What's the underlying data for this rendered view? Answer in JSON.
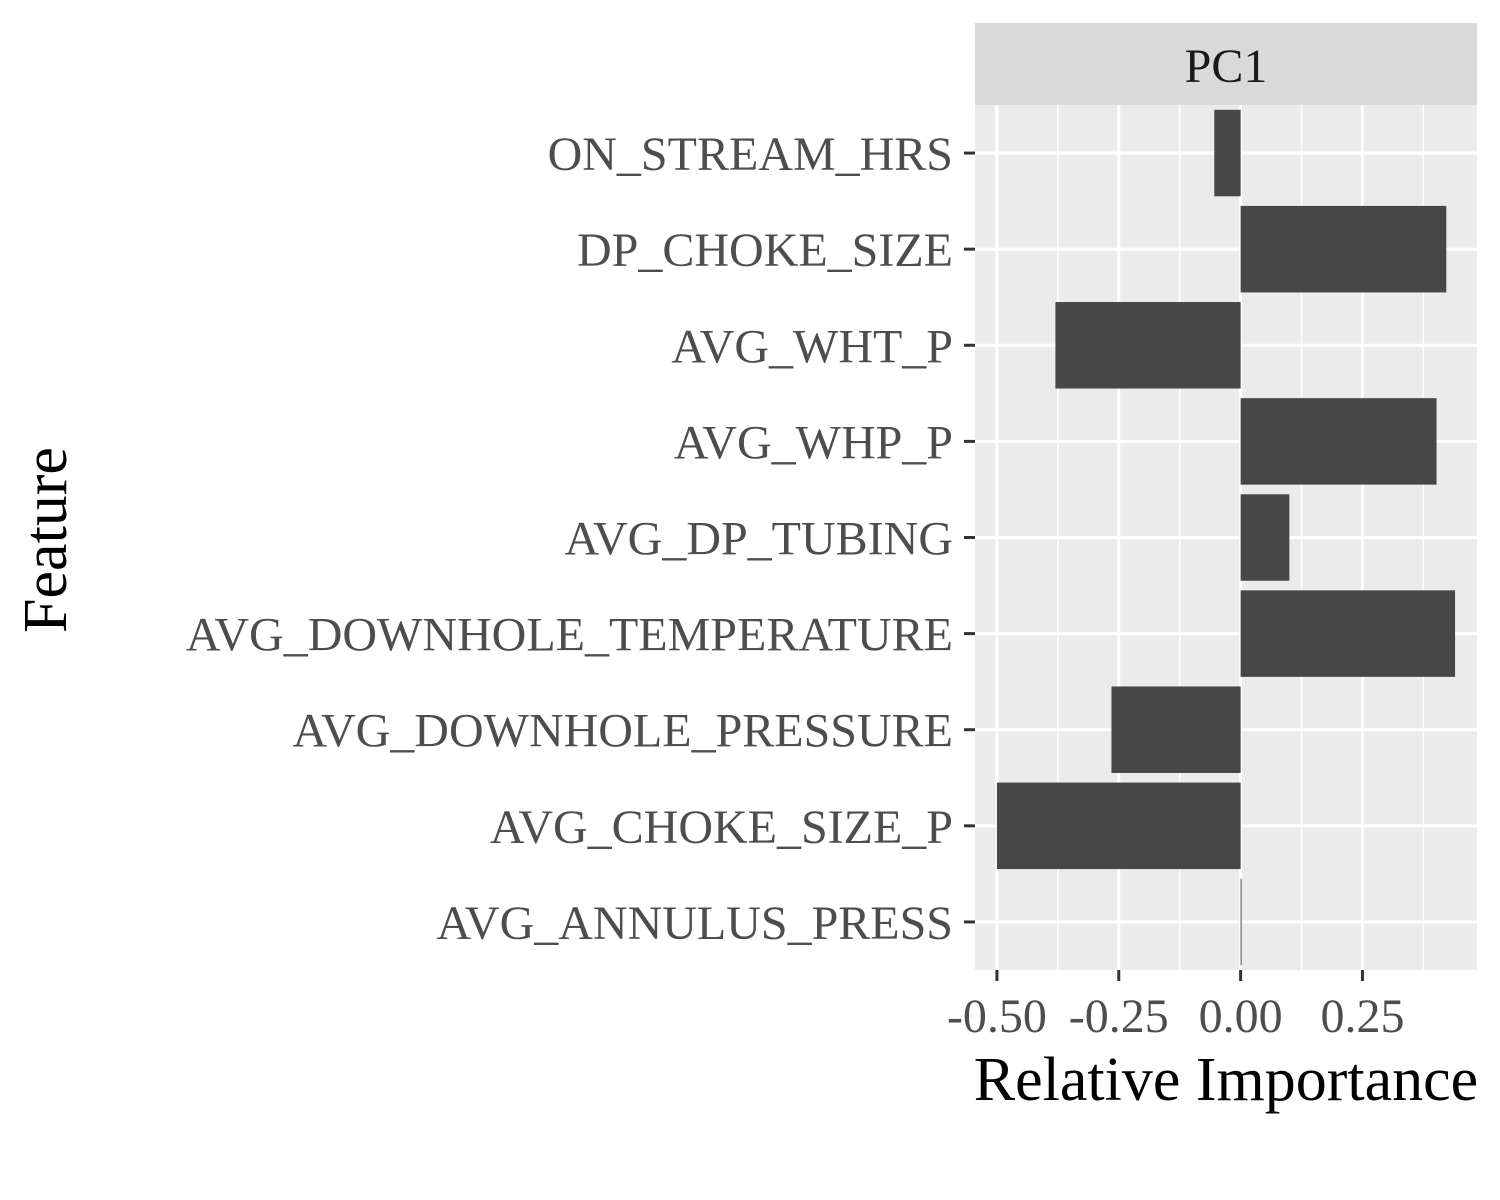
{
  "chart_data": {
    "type": "bar",
    "orientation": "horizontal",
    "facet_label": "PC1",
    "xlabel": "Relative Importance",
    "ylabel": "Feature",
    "xlim": [
      -0.545,
      0.485
    ],
    "x_ticks": [
      -0.5,
      -0.25,
      0.0,
      0.25
    ],
    "x_tick_labels": [
      "-0.50",
      "-0.25",
      "0.00",
      "0.25"
    ],
    "x_minor_ticks": [
      -0.375,
      -0.125,
      0.125,
      0.375
    ],
    "categories": [
      "ON_STREAM_HRS",
      "DP_CHOKE_SIZE",
      "AVG_WHT_P",
      "AVG_WHP_P",
      "AVG_DP_TUBING",
      "AVG_DOWNHOLE_TEMPERATURE",
      "AVG_DOWNHOLE_PRESSURE",
      "AVG_CHOKE_SIZE_P",
      "AVG_ANNULUS_PRESS"
    ],
    "values": [
      -0.054,
      0.422,
      -0.38,
      0.402,
      0.1,
      0.44,
      -0.265,
      -0.5,
      0.002
    ],
    "grid": true,
    "legend": "none",
    "bar_color": "#474747",
    "panel_color": "#ebebeb",
    "strip_color": "#d9d9d9"
  }
}
